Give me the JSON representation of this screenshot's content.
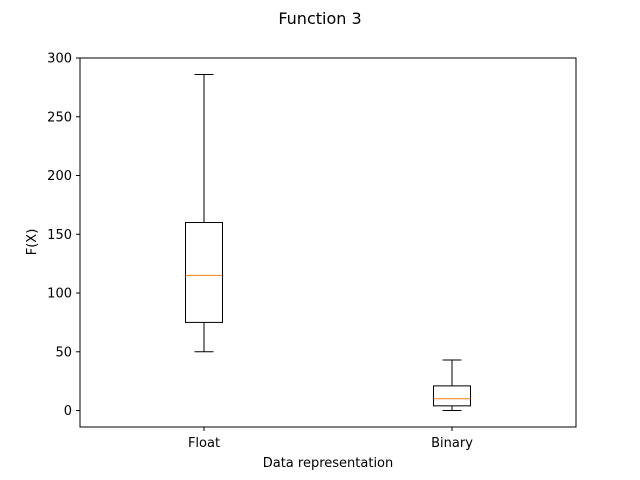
{
  "chart_data": {
    "type": "box",
    "title": "Function 3",
    "xlabel": "Data representation",
    "ylabel": "F(X)",
    "ylim": [
      -14,
      300
    ],
    "yticks": [
      0,
      50,
      100,
      150,
      200,
      250,
      300
    ],
    "categories": [
      "Float",
      "Binary"
    ],
    "boxes": [
      {
        "label": "Float",
        "whisker_low": 50,
        "q1": 75,
        "median": 115,
        "q3": 160,
        "whisker_high": 286
      },
      {
        "label": "Binary",
        "whisker_low": 0,
        "q1": 4,
        "median": 10,
        "q3": 21,
        "whisker_high": 43
      }
    ],
    "grid": false,
    "colors": {
      "box": "#000000",
      "median": "#ff7f0e",
      "background": "#ffffff"
    }
  }
}
